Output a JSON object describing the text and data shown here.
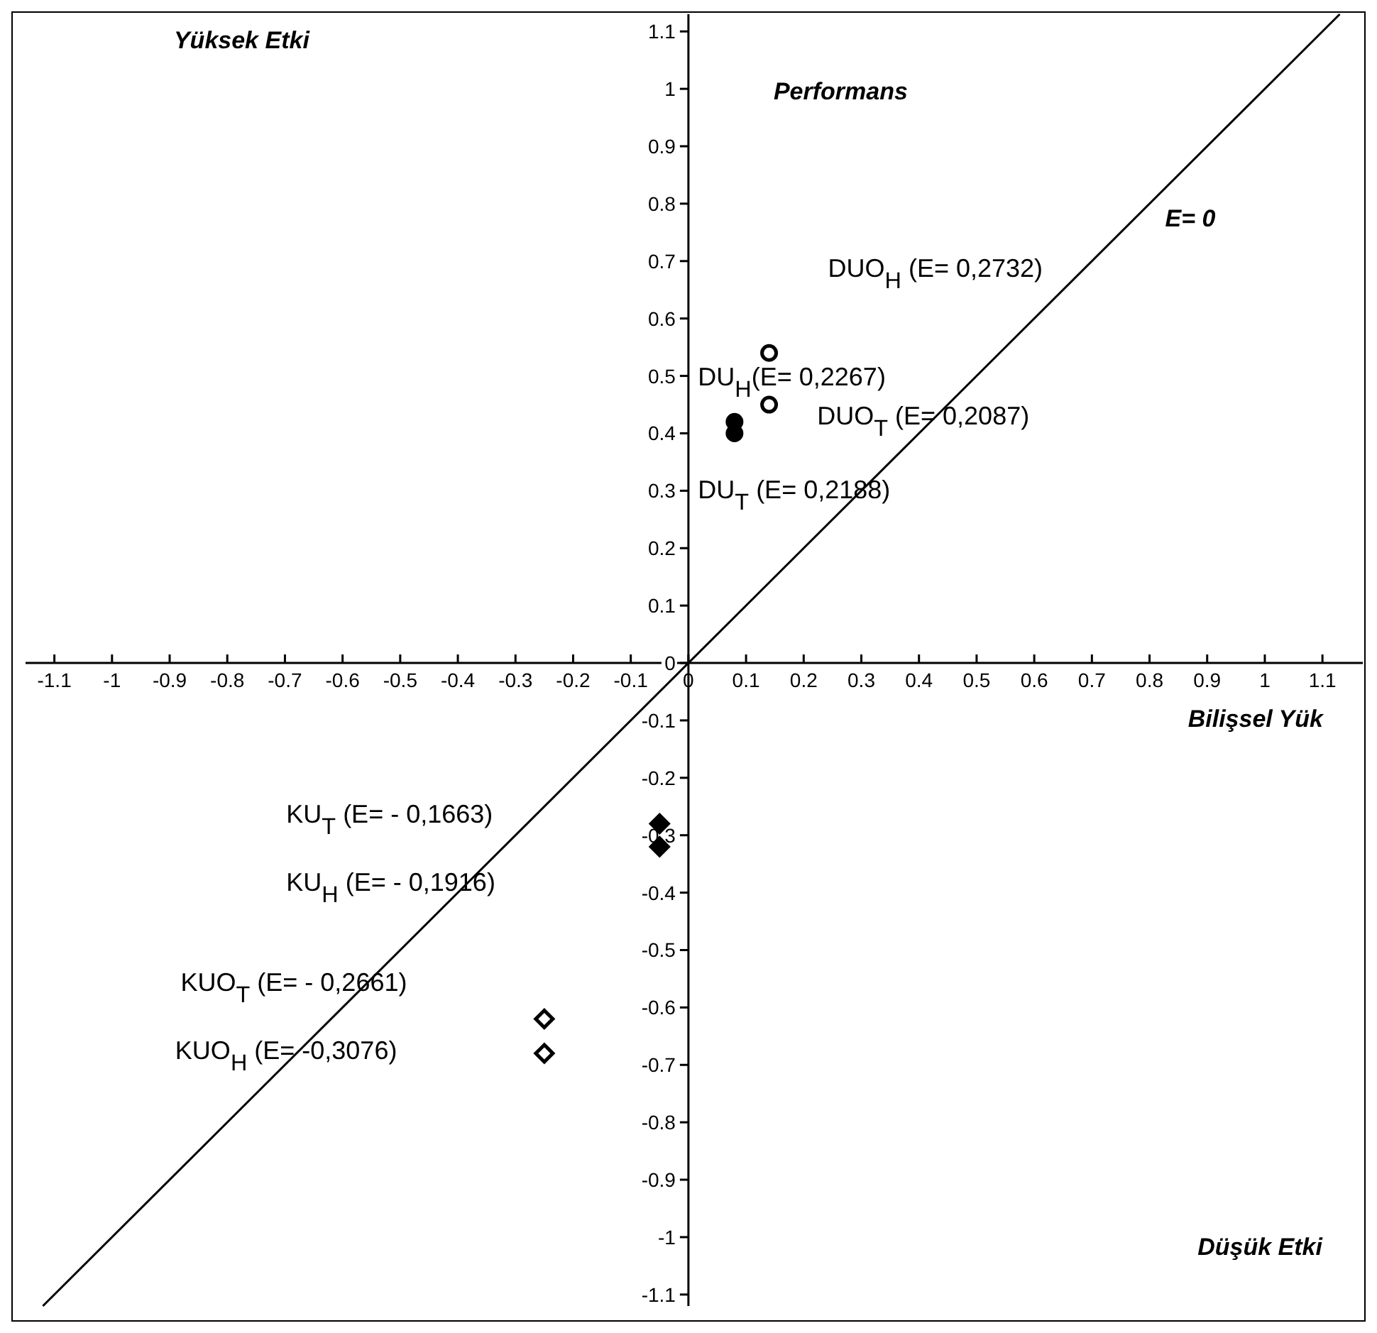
{
  "chart_data": {
    "type": "scatter",
    "xlabel": "Bilişsel Yük",
    "ylabel": "Performans",
    "xlim": [
      -1.15,
      1.17
    ],
    "ylim": [
      -1.12,
      1.13
    ],
    "xticks": [
      -1.1,
      -1,
      -0.9,
      -0.8,
      -0.7,
      -0.6,
      -0.5,
      -0.4,
      -0.3,
      -0.2,
      -0.1,
      0,
      0.1,
      0.2,
      0.3,
      0.4,
      0.5,
      0.6,
      0.7,
      0.8,
      0.9,
      1,
      1.1
    ],
    "yticks": [
      -1.1,
      -1,
      -0.9,
      -0.8,
      -0.7,
      -0.6,
      -0.5,
      -0.4,
      -0.3,
      -0.2,
      -0.1,
      0,
      0.1,
      0.2,
      0.3,
      0.4,
      0.5,
      0.6,
      0.7,
      0.8,
      0.9,
      1,
      1.1
    ],
    "series": [
      {
        "type": "line",
        "color": "#000000",
        "marker": "none",
        "line_style": "solid",
        "x": [
          -1.12,
          1.13
        ],
        "values": [
          -1.12,
          1.13
        ]
      },
      {
        "color": "#000000",
        "marker": "circle",
        "x": [
          0.08,
          0.08
        ],
        "values": [
          0.42,
          0.4
        ]
      },
      {
        "color": "#ffffff",
        "marker": "circle",
        "x": [
          0.14,
          0.14
        ],
        "values": [
          0.54,
          0.45
        ]
      },
      {
        "color": "#000000",
        "marker": "diamond",
        "x": [
          -0.05,
          -0.05
        ],
        "values": [
          -0.28,
          -0.32
        ]
      },
      {
        "color": "#ffffff",
        "marker": "diamond",
        "x": [
          -0.25,
          -0.25
        ],
        "values": [
          -0.62,
          -0.68
        ]
      }
    ],
    "annotations": [
      "Yüksek Etki",
      "Düşük Etki",
      "E= 0",
      "DUO$_{H}$ (E= 0,2732)",
      "DU$_{H}$(E= 0,2267)",
      "DUO$_{T}$ (E= 0,2087)",
      "DU$_{T}$ (E= 0,2188)",
      "KU$_{T}$ (E= - 0,1663)",
      "KU$_{H}$ (E= - 0,1916)",
      "KUO$_{T}$ (E= - 0,2661)",
      "KUO$_{H}$ (E= -0,3076)"
    ]
  }
}
